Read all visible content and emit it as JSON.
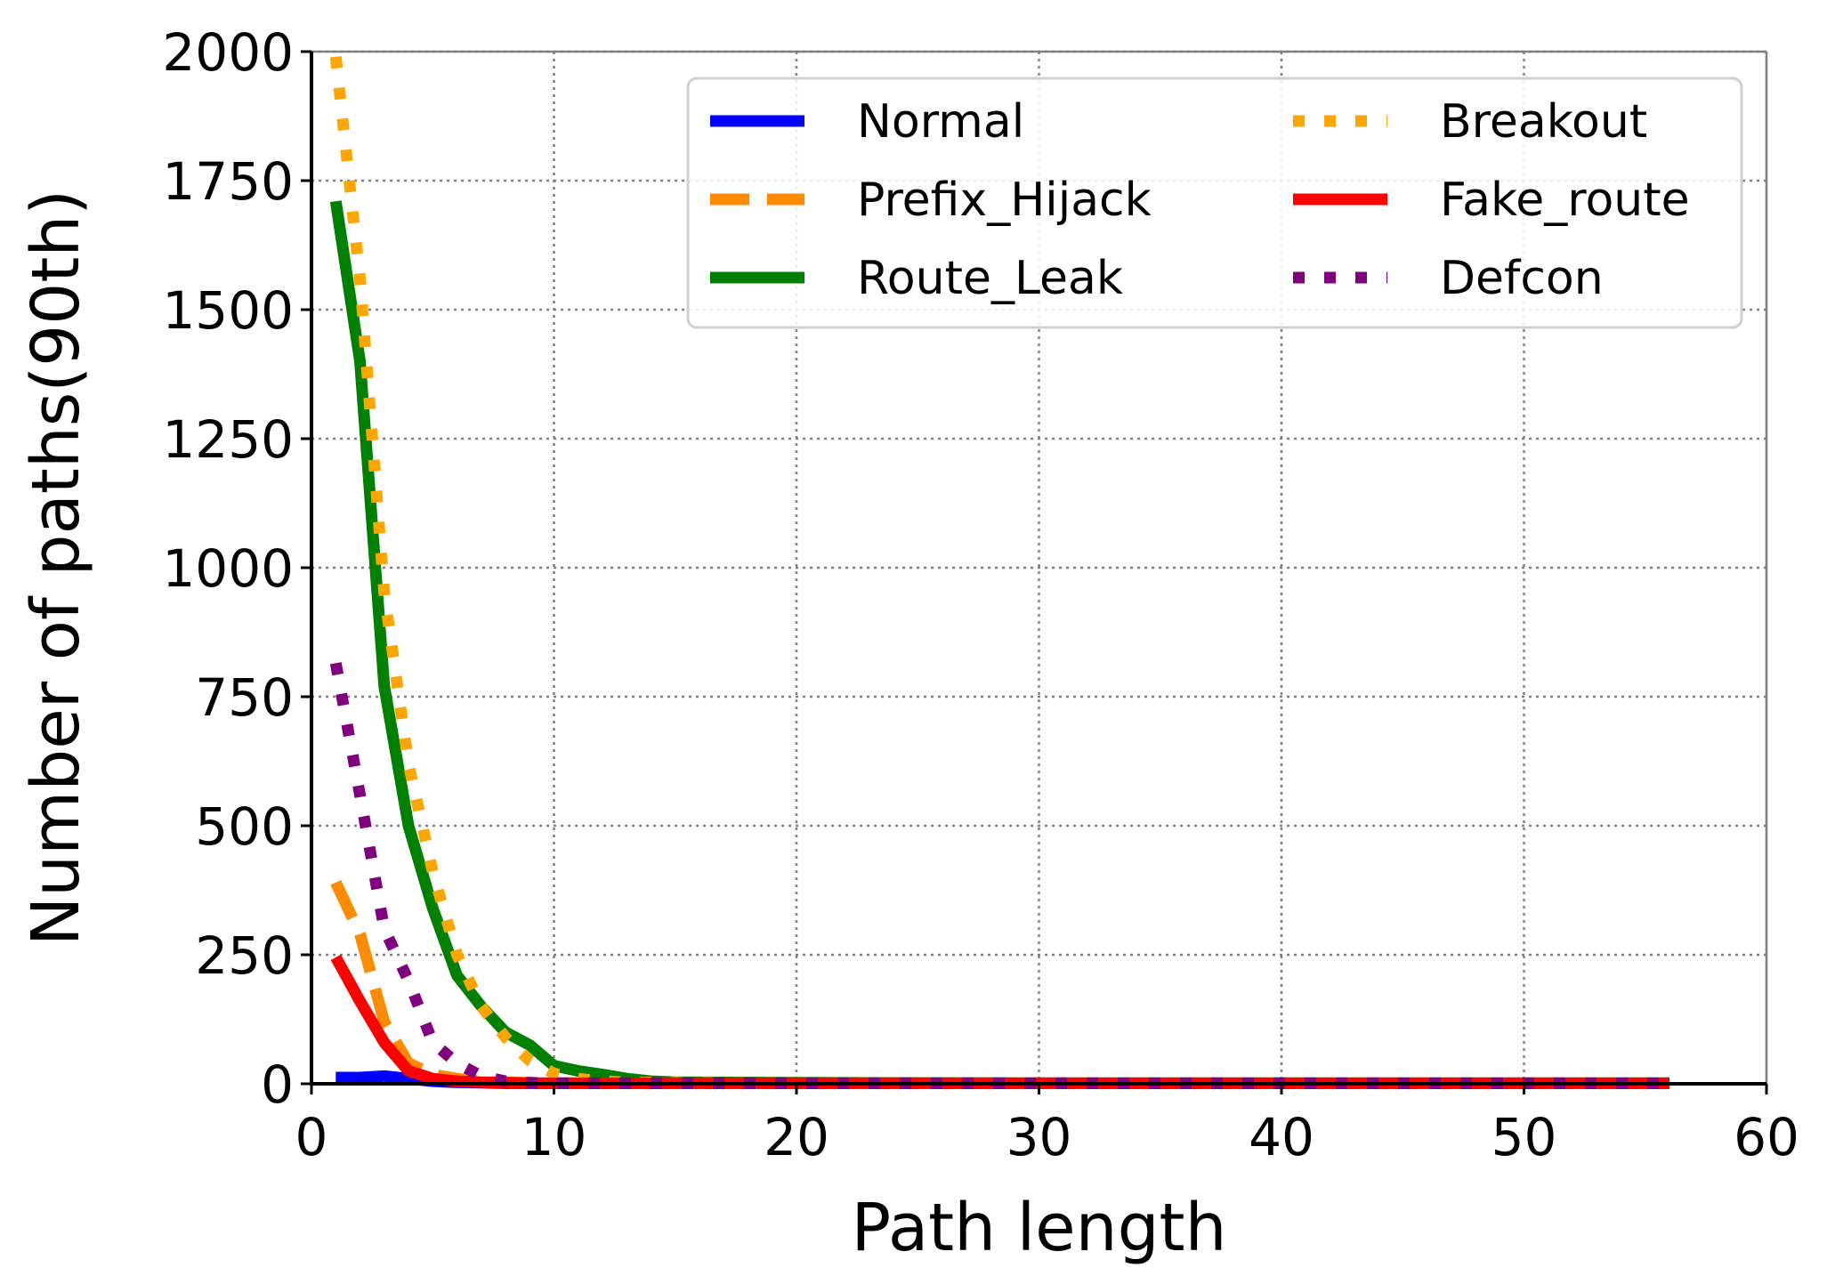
{
  "chart_data": {
    "type": "line",
    "xlabel": "Path length",
    "ylabel": "Number of paths(90th)",
    "xlim": [
      0,
      60
    ],
    "ylim": [
      0,
      2000
    ],
    "xticks": [
      0,
      10,
      20,
      30,
      40,
      50,
      60
    ],
    "yticks": [
      0,
      250,
      500,
      750,
      1000,
      1250,
      1500,
      1750,
      2000
    ],
    "grid": true,
    "legend_position": "top-right",
    "legend_columns": 2,
    "series": [
      {
        "name": "Normal",
        "color": "#0000ff",
        "style": "solid",
        "x": [
          1,
          2,
          3,
          4,
          5,
          6,
          7,
          8,
          9,
          10,
          15,
          20,
          30,
          40,
          50,
          56
        ],
        "y": [
          12,
          12,
          15,
          10,
          5,
          3,
          2,
          1,
          1,
          1,
          1,
          1,
          1,
          1,
          1,
          1
        ]
      },
      {
        "name": "Prefix_Hijack",
        "color": "#ff8c00",
        "style": "dashed",
        "x": [
          1,
          2,
          3,
          4,
          5,
          6,
          7,
          8,
          9,
          10,
          15,
          20,
          30,
          40,
          50,
          56
        ],
        "y": [
          390,
          290,
          120,
          40,
          18,
          10,
          5,
          3,
          2,
          1,
          1,
          1,
          1,
          1,
          1,
          1
        ]
      },
      {
        "name": "Route_Leak",
        "color": "#008000",
        "style": "solid",
        "x": [
          1,
          2,
          3,
          4,
          5,
          6,
          7,
          8,
          9,
          10,
          11,
          12,
          13,
          14,
          15,
          20,
          30,
          40,
          50,
          56
        ],
        "y": [
          1710,
          1400,
          770,
          500,
          340,
          210,
          150,
          100,
          75,
          35,
          25,
          18,
          10,
          5,
          3,
          2,
          1,
          1,
          1,
          1
        ]
      },
      {
        "name": "Breakout",
        "color": "#ffa500",
        "style": "dotted",
        "x": [
          1,
          2,
          3,
          4,
          5,
          6,
          7,
          8,
          9,
          10,
          11,
          12,
          13,
          15,
          20,
          30,
          40,
          50,
          56
        ],
        "y": [
          1990,
          1560,
          950,
          620,
          410,
          250,
          150,
          90,
          45,
          20,
          10,
          5,
          3,
          2,
          1,
          1,
          1,
          1,
          1
        ]
      },
      {
        "name": "Fake_route",
        "color": "#ff0000",
        "style": "solid",
        "x": [
          1,
          2,
          3,
          4,
          5,
          6,
          7,
          8,
          9,
          10,
          15,
          20,
          30,
          40,
          50,
          56
        ],
        "y": [
          245,
          160,
          80,
          25,
          10,
          5,
          3,
          2,
          1,
          1,
          1,
          1,
          1,
          1,
          1,
          1
        ]
      },
      {
        "name": "Defcon",
        "color": "#800080",
        "style": "dotted",
        "x": [
          1,
          2,
          3,
          4,
          5,
          6,
          7,
          8,
          9,
          10,
          15,
          20,
          30,
          40,
          50,
          56
        ],
        "y": [
          815,
          560,
          300,
          200,
          80,
          40,
          15,
          5,
          2,
          1,
          1,
          1,
          1,
          1,
          1,
          1
        ]
      }
    ]
  }
}
